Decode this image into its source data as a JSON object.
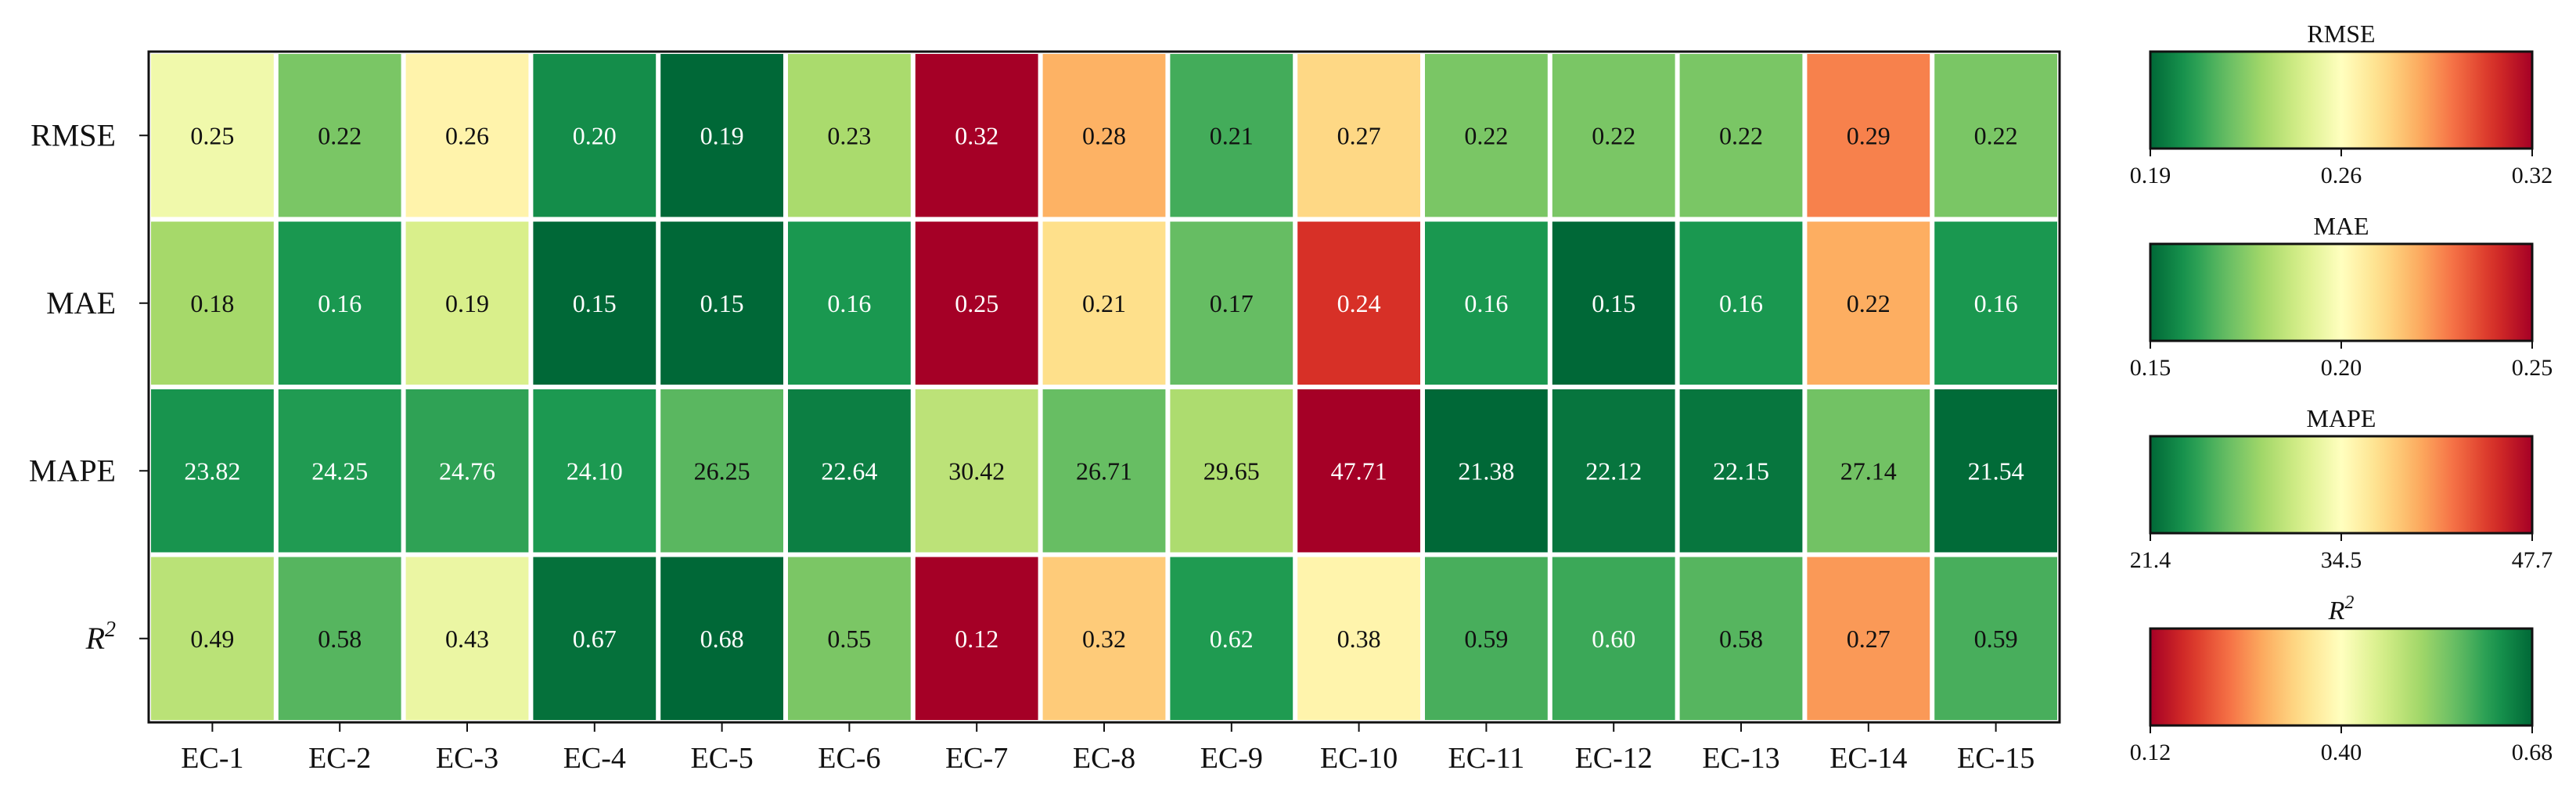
{
  "chart_data": {
    "type": "heatmap",
    "columns": [
      "EC-1",
      "EC-2",
      "EC-3",
      "EC-4",
      "EC-5",
      "EC-6",
      "EC-7",
      "EC-8",
      "EC-9",
      "EC-10",
      "EC-11",
      "EC-12",
      "EC-13",
      "EC-14",
      "EC-15"
    ],
    "rows": [
      {
        "label": "RMSE",
        "reverse": false,
        "values": [
          0.25,
          0.22,
          0.26,
          0.2,
          0.19,
          0.23,
          0.32,
          0.28,
          0.21,
          0.27,
          0.22,
          0.22,
          0.22,
          0.29,
          0.22
        ],
        "text": [
          "0.25",
          "0.22",
          "0.26",
          "0.20",
          "0.19",
          "0.23",
          "0.32",
          "0.28",
          "0.21",
          "0.27",
          "0.22",
          "0.22",
          "0.22",
          "0.29",
          "0.22"
        ]
      },
      {
        "label": "MAE",
        "reverse": false,
        "values": [
          0.18,
          0.16,
          0.19,
          0.15,
          0.15,
          0.16,
          0.25,
          0.21,
          0.17,
          0.24,
          0.16,
          0.15,
          0.16,
          0.22,
          0.16
        ],
        "text": [
          "0.18",
          "0.16",
          "0.19",
          "0.15",
          "0.15",
          "0.16",
          "0.25",
          "0.21",
          "0.17",
          "0.24",
          "0.16",
          "0.15",
          "0.16",
          "0.22",
          "0.16"
        ]
      },
      {
        "label": "MAPE",
        "reverse": false,
        "values": [
          23.82,
          24.25,
          24.76,
          24.1,
          26.25,
          22.64,
          30.42,
          26.71,
          29.65,
          47.71,
          21.38,
          22.12,
          22.15,
          27.14,
          21.54
        ],
        "text": [
          "23.82",
          "24.25",
          "24.76",
          "24.10",
          "26.25",
          "22.64",
          "30.42",
          "26.71",
          "29.65",
          "47.71",
          "21.38",
          "22.12",
          "22.15",
          "27.14",
          "21.54"
        ]
      },
      {
        "label": "R",
        "sup": "2",
        "reverse": true,
        "values": [
          0.49,
          0.58,
          0.43,
          0.67,
          0.68,
          0.55,
          0.12,
          0.32,
          0.62,
          0.38,
          0.59,
          0.6,
          0.58,
          0.27,
          0.59
        ],
        "text": [
          "0.49",
          "0.58",
          "0.43",
          "0.67",
          "0.68",
          "0.55",
          "0.12",
          "0.32",
          "0.62",
          "0.38",
          "0.59",
          "0.60",
          "0.58",
          "0.27",
          "0.59"
        ]
      }
    ],
    "colorbars": [
      {
        "title": "RMSE",
        "vmin": 0.19,
        "vmax": 0.32,
        "ticks": [
          "0.19",
          "0.26",
          "0.32"
        ],
        "reverse": false
      },
      {
        "title": "MAE",
        "vmin": 0.15,
        "vmax": 0.25,
        "ticks": [
          "0.15",
          "0.20",
          "0.25"
        ],
        "reverse": false
      },
      {
        "title": "MAPE",
        "vmin": 21.4,
        "vmax": 47.7,
        "ticks": [
          "21.4",
          "34.5",
          "47.7"
        ],
        "reverse": false
      },
      {
        "title": "R",
        "title_sup": "2",
        "vmin": 0.12,
        "vmax": 0.68,
        "ticks": [
          "0.12",
          "0.40",
          "0.68"
        ],
        "reverse": true
      }
    ],
    "colormap": "RdYlGn",
    "grid": false,
    "legend": "right"
  }
}
